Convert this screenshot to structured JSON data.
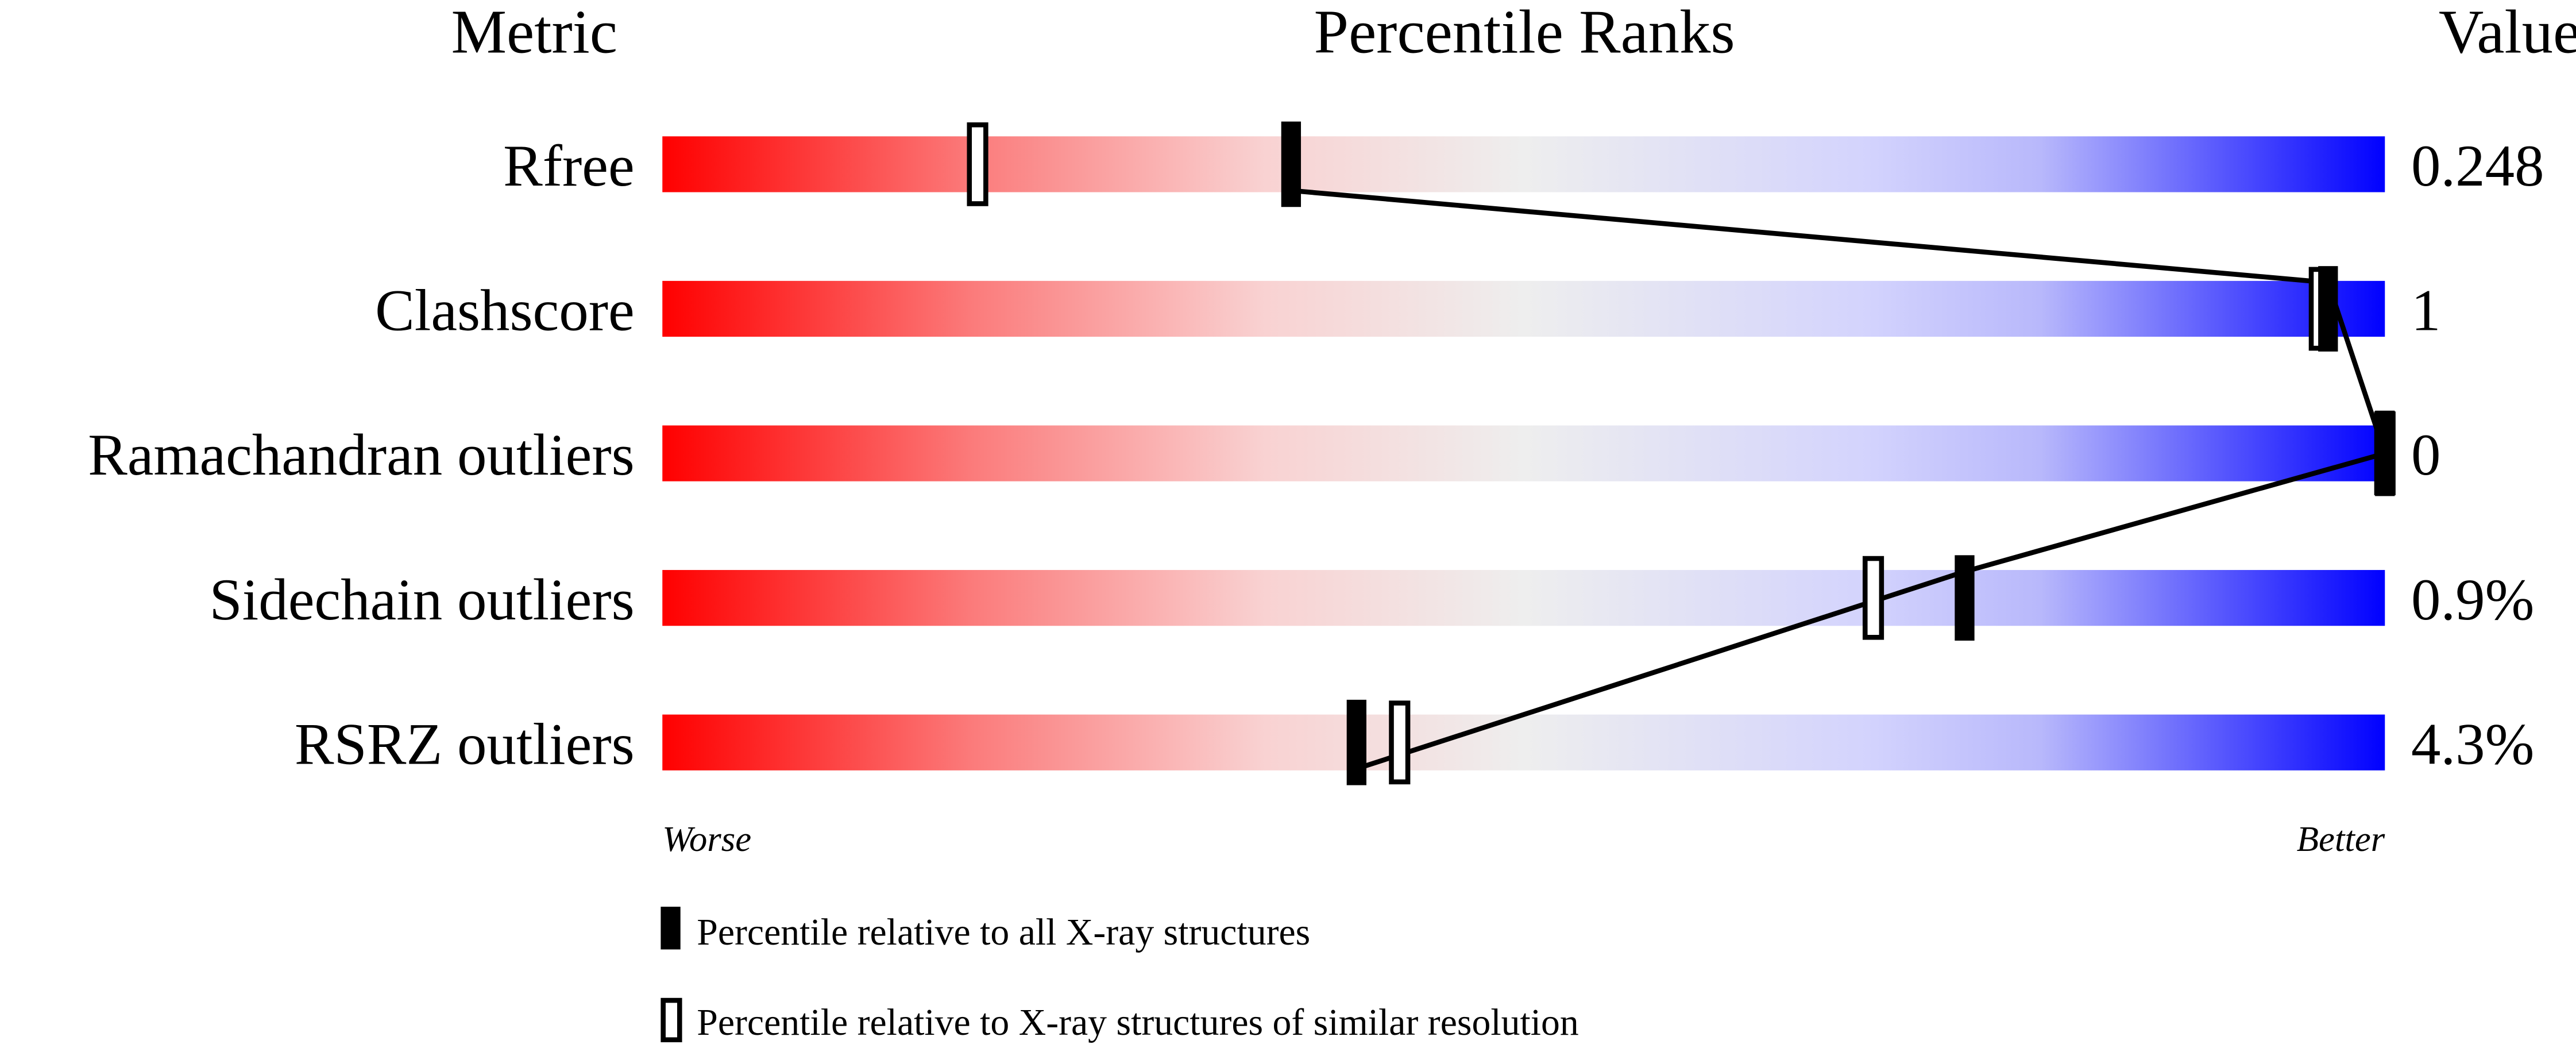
{
  "chart_data": {
    "type": "percentile-slider",
    "headers": {
      "metric": "Metric",
      "ranks": "Percentile Ranks",
      "value": "Value"
    },
    "xlim": [
      0,
      100
    ],
    "axis_labels": {
      "left": "Worse",
      "right": "Better"
    },
    "rows": [
      {
        "metric": "Rfree",
        "value": "0.248",
        "percentile_all": 36.5,
        "percentile_similar": 18.3
      },
      {
        "metric": "Clashscore",
        "value": "1",
        "percentile_all": 96.7,
        "percentile_similar": 96.2
      },
      {
        "metric": "Ramachandran outliers",
        "value": "0",
        "percentile_all": 100,
        "percentile_similar": 100
      },
      {
        "metric": "Sidechain outliers",
        "value": "0.9%",
        "percentile_all": 75.6,
        "percentile_similar": 70.3
      },
      {
        "metric": "RSRZ outliers",
        "value": "4.3%",
        "percentile_all": 40.3,
        "percentile_similar": 42.8
      }
    ],
    "legend": [
      {
        "style": "filled",
        "label": "Percentile relative to all X-ray structures"
      },
      {
        "style": "open",
        "label": "Percentile relative to X-ray structures of similar resolution"
      }
    ],
    "colors": {
      "worse": "#ff0000",
      "middle": "#eeeeee",
      "better": "#0000ff",
      "marker": "#000000"
    }
  }
}
